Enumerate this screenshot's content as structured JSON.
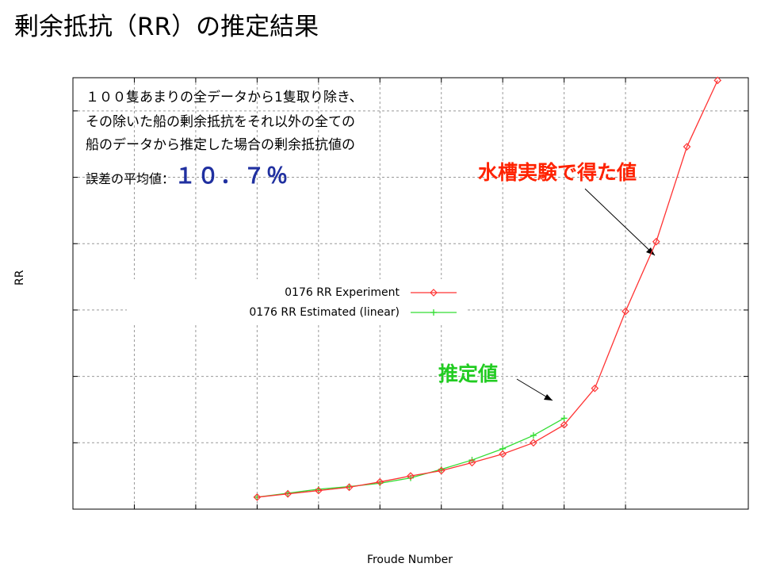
{
  "title": "剰余抵抗（RR）の推定結果",
  "note": {
    "line1": "１００隻あまりの全データから1隻取り除き、",
    "line2": "その除いた船の剰余抵抗をそれ以外の全ての",
    "line3": "船のデータから推定した場合の剰余抵抗値の",
    "line4_prefix": "誤差の平均値：",
    "error_value": "１０．７％"
  },
  "annotations": {
    "experiment": "水槽実験で得た値",
    "estimated": "推定値"
  },
  "colors": {
    "experiment": "#ff3333",
    "estimated": "#33dd33",
    "grid": "#999999",
    "error_value": "#2030a0"
  },
  "chart_data": {
    "type": "line",
    "title": "",
    "xlabel": "Froude Number",
    "ylabel": "RR",
    "grid": true,
    "legend_position": "middle-left",
    "x": [
      0.3,
      0.35,
      0.4,
      0.45,
      0.5,
      0.55,
      0.6,
      0.65,
      0.7,
      0.75,
      0.8,
      0.85,
      0.9,
      0.95,
      1.0,
      1.05
    ],
    "xlim": [
      0.0,
      1.1
    ],
    "ylim": [
      0.0,
      6.5
    ],
    "series": [
      {
        "name": "0176 RR Experiment",
        "marker": "diamond",
        "x": [
          0.3,
          0.35,
          0.4,
          0.45,
          0.5,
          0.55,
          0.6,
          0.65,
          0.7,
          0.75,
          0.8,
          0.85,
          0.9,
          0.95,
          1.0,
          1.05
        ],
        "values": [
          0.18,
          0.23,
          0.28,
          0.33,
          0.41,
          0.5,
          0.58,
          0.7,
          0.83,
          1.0,
          1.27,
          1.82,
          2.98,
          4.03,
          5.46,
          6.46
        ]
      },
      {
        "name": "0176 RR Estimated (linear)",
        "marker": "plus",
        "x": [
          0.3,
          0.35,
          0.4,
          0.45,
          0.5,
          0.55,
          0.6,
          0.65,
          0.7,
          0.75,
          0.8
        ],
        "values": [
          0.18,
          0.24,
          0.3,
          0.34,
          0.39,
          0.47,
          0.6,
          0.74,
          0.91,
          1.11,
          1.37
        ]
      }
    ]
  }
}
